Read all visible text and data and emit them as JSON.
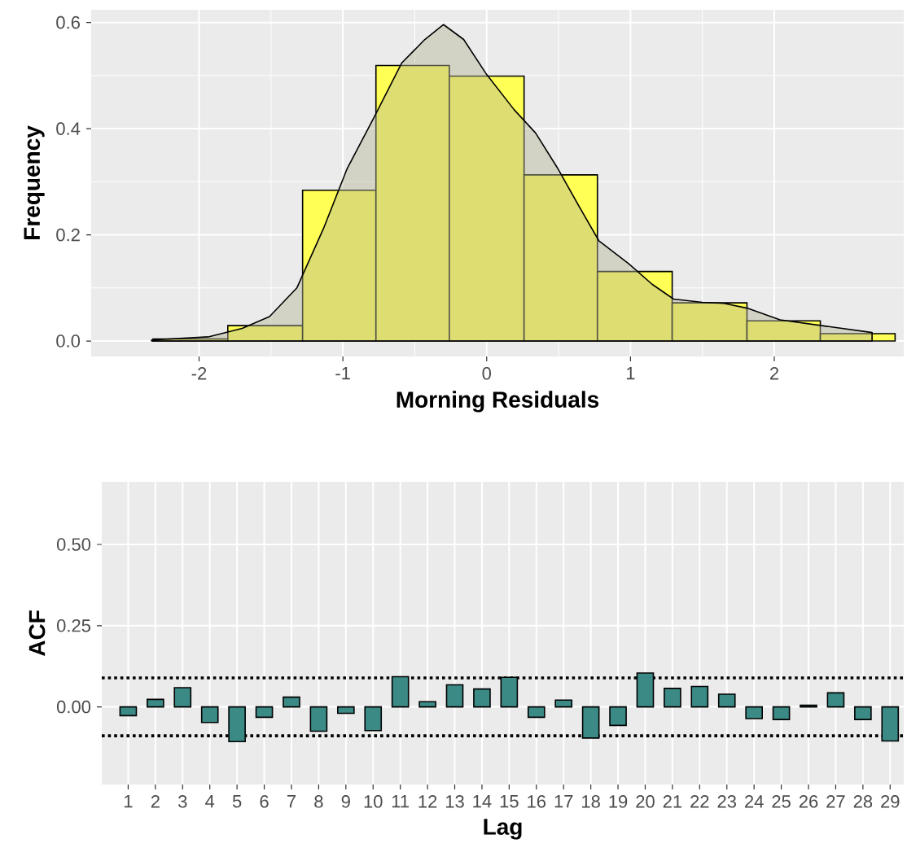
{
  "chart_data": [
    {
      "type": "histogram",
      "xlabel": "Morning Residuals",
      "ylabel": "Frequency",
      "bins": [
        -2.32,
        -1.8,
        -1.28,
        -0.77,
        -0.26,
        0.26,
        0.77,
        1.29,
        1.81,
        2.32,
        2.84
      ],
      "values": [
        0.004,
        0.029,
        0.284,
        0.519,
        0.499,
        0.313,
        0.131,
        0.072,
        0.038,
        0.014
      ],
      "color": "#ffff55",
      "series": [
        {
          "type": "area",
          "color": "#b4b496",
          "x": [
            -2.33,
            -1.93,
            -1.7,
            -1.51,
            -1.32,
            -1.13,
            -0.97,
            -0.78,
            -0.59,
            -0.43,
            -0.3,
            -0.16,
            0,
            0.19,
            0.34,
            0.49,
            0.65,
            0.78,
            0.99,
            1.15,
            1.3,
            1.5,
            1.65,
            1.81,
            2.04,
            2.33,
            2.68
          ],
          "values": [
            0.002,
            0.008,
            0.024,
            0.046,
            0.1,
            0.215,
            0.325,
            0.423,
            0.524,
            0.568,
            0.596,
            0.568,
            0.502,
            0.436,
            0.392,
            0.327,
            0.25,
            0.189,
            0.145,
            0.107,
            0.079,
            0.073,
            0.071,
            0.062,
            0.04,
            0.029,
            0.016
          ]
        }
      ],
      "xlim": [
        -2.75,
        2.9
      ],
      "ylim": [
        -0.029,
        0.624
      ],
      "xticks": [
        -2,
        -1,
        0,
        1,
        2
      ],
      "yticks": [
        {
          "value": 0,
          "label": "0.0"
        },
        {
          "value": 0.2,
          "label": "0.2"
        },
        {
          "value": 0.4,
          "label": "0.4"
        },
        {
          "value": 0.6,
          "label": "0.6"
        }
      ],
      "grid": true
    },
    {
      "type": "bar",
      "xlabel": "Lag",
      "ylabel": "ACF",
      "categories": [
        "1",
        "2",
        "3",
        "4",
        "5",
        "6",
        "7",
        "8",
        "9",
        "10",
        "11",
        "12",
        "13",
        "14",
        "15",
        "16",
        "17",
        "18",
        "19",
        "20",
        "21",
        "22",
        "23",
        "24",
        "25",
        "26",
        "27",
        "28",
        "29"
      ],
      "values": [
        -0.027,
        0.023,
        0.059,
        -0.048,
        -0.107,
        -0.032,
        0.03,
        -0.075,
        -0.02,
        -0.073,
        0.093,
        0.016,
        0.068,
        0.055,
        0.091,
        -0.032,
        0.021,
        -0.096,
        -0.057,
        0.104,
        0.057,
        0.063,
        0.039,
        -0.036,
        -0.039,
        0.005,
        0.043,
        -0.039,
        -0.105
      ],
      "color": "#3b8a86",
      "ylim": [
        -0.239,
        0.693
      ],
      "yticks": [
        {
          "value": 0,
          "label": "0.00"
        },
        {
          "value": 0.25,
          "label": "0.25"
        },
        {
          "value": 0.5,
          "label": "0.50"
        }
      ],
      "ref_lines": [
        {
          "axis": "y",
          "value": 0.089,
          "line_style": "dotted",
          "color": "#000000"
        },
        {
          "axis": "y",
          "value": -0.089,
          "line_style": "dotted",
          "color": "#000000"
        }
      ],
      "grid": true
    }
  ]
}
